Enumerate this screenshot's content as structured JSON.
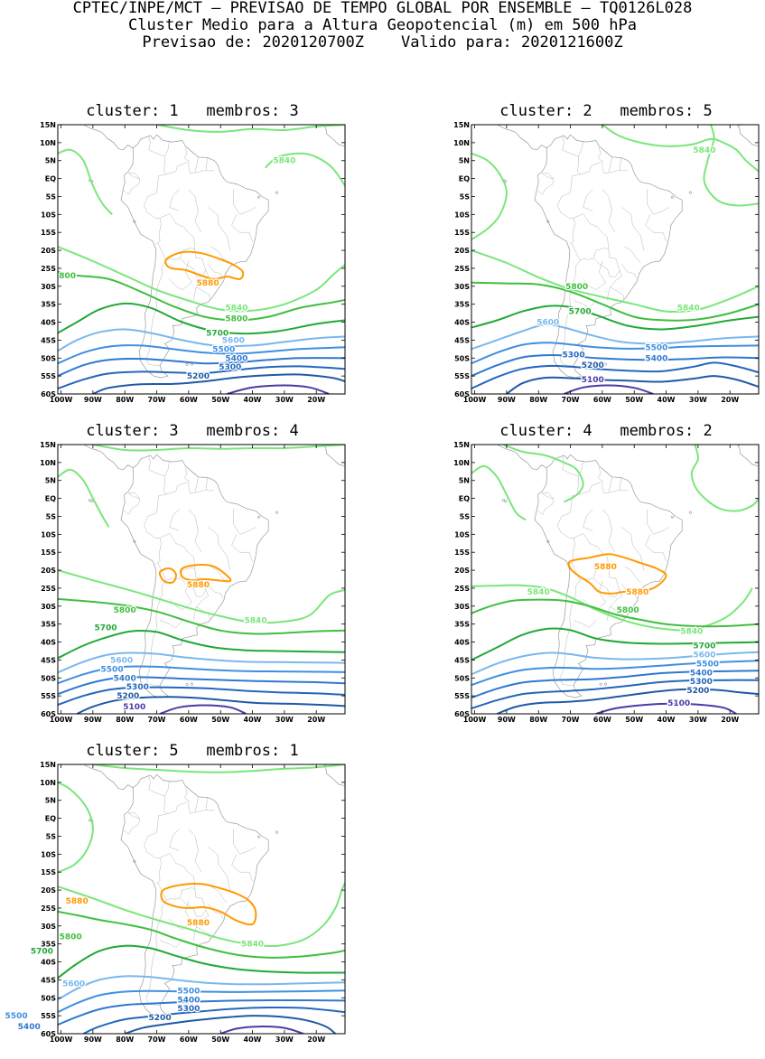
{
  "header": {
    "line1": "CPTEC/INPE/MCT – PREVISAO DE TEMPO GLOBAL POR ENSEMBLE – TQ0126L028",
    "line2": "Cluster Medio para a Altura Geopotencial (m) em 500 hPa",
    "line3": "Previsao de: 2020120700Z    Valido para: 2020121600Z"
  },
  "axes": {
    "lat_labels": [
      "15N",
      "10N",
      "5N",
      "EQ",
      "5S",
      "10S",
      "15S",
      "20S",
      "25S",
      "30S",
      "35S",
      "40S",
      "45S",
      "50S",
      "55S",
      "60S"
    ],
    "lon_labels": [
      "100W",
      "90W",
      "80W",
      "70W",
      "60W",
      "50W",
      "40W",
      "30W",
      "20W"
    ]
  },
  "colors": {
    "c5100": "#4b3aa8",
    "c5200": "#1f5aa6",
    "c5300": "#2367bd",
    "c5400": "#2f78d0",
    "c5500": "#3f8fe0",
    "c5600": "#7ab7ee",
    "c5700": "#22a837",
    "c5800": "#3fbf3f",
    "c5840": "#7ae67a",
    "c5880": "#ff9a00"
  },
  "panels": [
    {
      "title": "cluster: 1   membros: 3",
      "labels": [
        {
          "t": "5840",
          "lon": -30,
          "lat": 5,
          "c": "c5840"
        },
        {
          "t": "800",
          "lon": -98,
          "lat": -27,
          "c": "c5800"
        },
        {
          "t": "5880",
          "lon": -54,
          "lat": -29,
          "c": "c5880"
        },
        {
          "t": "5840",
          "lon": -45,
          "lat": -36,
          "c": "c5840"
        },
        {
          "t": "5800",
          "lon": -45,
          "lat": -39,
          "c": "c5800"
        },
        {
          "t": "5700",
          "lon": -51,
          "lat": -43,
          "c": "c5700"
        },
        {
          "t": "5600",
          "lon": -46,
          "lat": -45,
          "c": "c5600"
        },
        {
          "t": "5500",
          "lon": -49,
          "lat": -47.5,
          "c": "c5500"
        },
        {
          "t": "5400",
          "lon": -45,
          "lat": -50,
          "c": "c5400"
        },
        {
          "t": "5300",
          "lon": -47,
          "lat": -52.5,
          "c": "c5300"
        },
        {
          "t": "5200",
          "lon": -57,
          "lat": -55,
          "c": "c5200"
        }
      ]
    },
    {
      "title": "cluster: 2   membros: 5",
      "labels": [
        {
          "t": "5840",
          "lon": -28,
          "lat": 8,
          "c": "c5840"
        },
        {
          "t": "5800",
          "lon": -68,
          "lat": -30,
          "c": "c5800"
        },
        {
          "t": "5840",
          "lon": -33,
          "lat": -36,
          "c": "c5840"
        },
        {
          "t": "5700",
          "lon": -67,
          "lat": -37,
          "c": "c5700"
        },
        {
          "t": "5600",
          "lon": -77,
          "lat": -40,
          "c": "c5600"
        },
        {
          "t": "5500",
          "lon": -43,
          "lat": -47,
          "c": "c5500"
        },
        {
          "t": "5400",
          "lon": -43,
          "lat": -50,
          "c": "c5400"
        },
        {
          "t": "5300",
          "lon": -69,
          "lat": -49,
          "c": "c5300"
        },
        {
          "t": "5200",
          "lon": -63,
          "lat": -52,
          "c": "c5200"
        },
        {
          "t": "5100",
          "lon": -63,
          "lat": -56,
          "c": "c5100"
        }
      ]
    },
    {
      "title": "cluster: 3   membros: 4",
      "labels": [
        {
          "t": "5880",
          "lon": -57,
          "lat": -24,
          "c": "c5880"
        },
        {
          "t": "5800",
          "lon": -80,
          "lat": -31,
          "c": "c5800"
        },
        {
          "t": "5840",
          "lon": -39,
          "lat": -34,
          "c": "c5840"
        },
        {
          "t": "5700",
          "lon": -86,
          "lat": -36,
          "c": "c5700"
        },
        {
          "t": "5600",
          "lon": -81,
          "lat": -45,
          "c": "c5600"
        },
        {
          "t": "5500",
          "lon": -84,
          "lat": -47.5,
          "c": "c5500"
        },
        {
          "t": "5400",
          "lon": -80,
          "lat": -50,
          "c": "c5400"
        },
        {
          "t": "5300",
          "lon": -76,
          "lat": -52.5,
          "c": "c5300"
        },
        {
          "t": "5200",
          "lon": -79,
          "lat": -55,
          "c": "c5200"
        },
        {
          "t": "5100",
          "lon": -77,
          "lat": -58,
          "c": "c5100"
        }
      ]
    },
    {
      "title": "cluster: 4   membros: 2",
      "labels": [
        {
          "t": "5880",
          "lon": -59,
          "lat": -19,
          "c": "c5880"
        },
        {
          "t": "5880",
          "lon": -49,
          "lat": -26,
          "c": "c5880"
        },
        {
          "t": "5840",
          "lon": -80,
          "lat": -26,
          "c": "c5840"
        },
        {
          "t": "5800",
          "lon": -52,
          "lat": -31,
          "c": "c5800"
        },
        {
          "t": "5840",
          "lon": -32,
          "lat": -37,
          "c": "c5840"
        },
        {
          "t": "5700",
          "lon": -28,
          "lat": -41,
          "c": "c5700"
        },
        {
          "t": "5600",
          "lon": -28,
          "lat": -43.5,
          "c": "c5600"
        },
        {
          "t": "5500",
          "lon": -27,
          "lat": -46,
          "c": "c5500"
        },
        {
          "t": "5400",
          "lon": -29,
          "lat": -48.5,
          "c": "c5400"
        },
        {
          "t": "5300",
          "lon": -29,
          "lat": -51,
          "c": "c5300"
        },
        {
          "t": "5200",
          "lon": -30,
          "lat": -53.5,
          "c": "c5200"
        },
        {
          "t": "5100",
          "lon": -36,
          "lat": -57,
          "c": "c5100"
        }
      ]
    },
    {
      "title": "cluster: 5   membros: 1",
      "labels": [
        {
          "t": "5880",
          "lon": -95,
          "lat": -23,
          "c": "c5880"
        },
        {
          "t": "5880",
          "lon": -57,
          "lat": -29,
          "c": "c5880"
        },
        {
          "t": "5800",
          "lon": -97,
          "lat": -33,
          "c": "c5800"
        },
        {
          "t": "5840",
          "lon": -40,
          "lat": -35,
          "c": "c5840"
        },
        {
          "t": "5700",
          "lon": -106,
          "lat": -37,
          "c": "c5700"
        },
        {
          "t": "5600",
          "lon": -96,
          "lat": -46,
          "c": "c5600"
        },
        {
          "t": "5500",
          "lon": -60,
          "lat": -48,
          "c": "c5500"
        },
        {
          "t": "5400",
          "lon": -60,
          "lat": -50.5,
          "c": "c5400"
        },
        {
          "t": "5300",
          "lon": -60,
          "lat": -53,
          "c": "c5300"
        },
        {
          "t": "5200",
          "lon": -69,
          "lat": -55.5,
          "c": "c5200"
        },
        {
          "t": "5500",
          "lon": -114,
          "lat": -55,
          "c": "c5500"
        },
        {
          "t": "5400",
          "lon": -110,
          "lat": -58,
          "c": "c5400"
        }
      ]
    }
  ]
}
